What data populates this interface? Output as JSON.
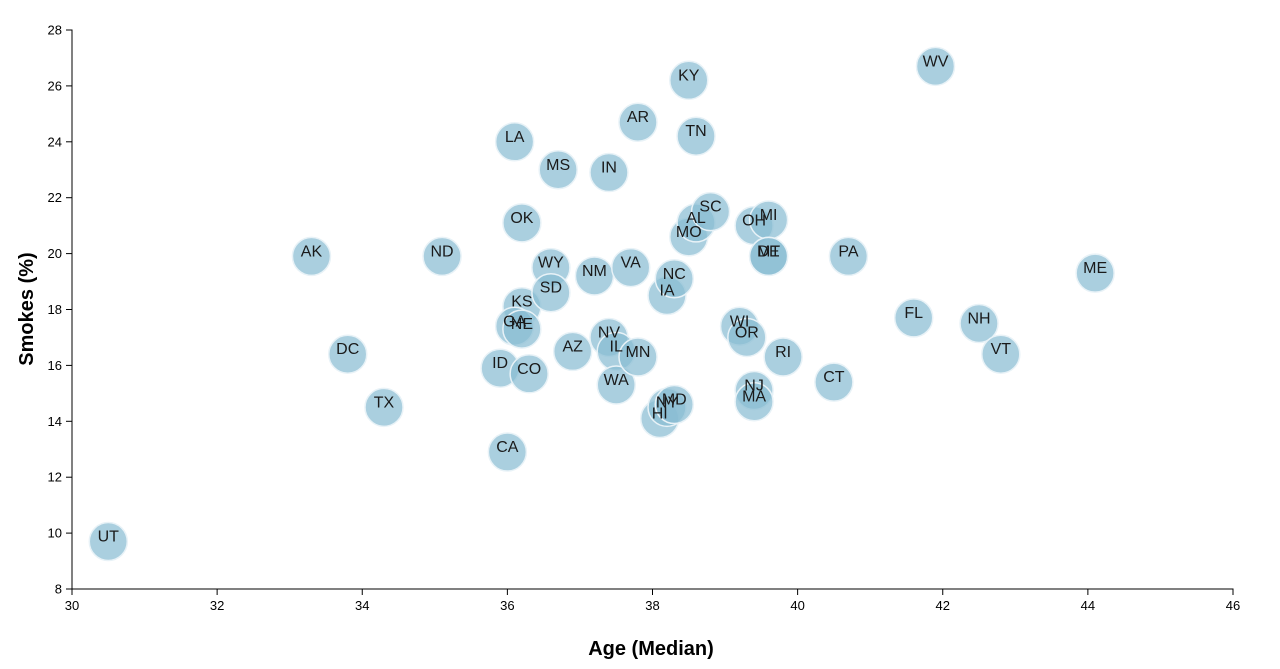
{
  "chart_data": {
    "type": "scatter",
    "title": "",
    "xlabel": "Age (Median)",
    "ylabel": "Smokes (%)",
    "xlim": [
      30,
      46
    ],
    "ylim": [
      8,
      28
    ],
    "xticks": [
      "30",
      "32",
      "34",
      "36",
      "38",
      "40",
      "42",
      "44",
      "46"
    ],
    "yticks": [
      "8",
      "10",
      "12",
      "14",
      "16",
      "18",
      "20",
      "22",
      "24",
      "26",
      "28"
    ],
    "grid": false,
    "marker_color": "#89bdd3",
    "points": [
      {
        "label": "UT",
        "x": 30.5,
        "y": 9.7
      },
      {
        "label": "AK",
        "x": 33.3,
        "y": 19.9
      },
      {
        "label": "DC",
        "x": 33.8,
        "y": 16.4
      },
      {
        "label": "TX",
        "x": 34.3,
        "y": 14.5
      },
      {
        "label": "ND",
        "x": 35.1,
        "y": 19.9
      },
      {
        "label": "ID",
        "x": 35.9,
        "y": 15.9
      },
      {
        "label": "CA",
        "x": 36.0,
        "y": 12.9
      },
      {
        "label": "LA",
        "x": 36.1,
        "y": 24.0
      },
      {
        "label": "OK",
        "x": 36.2,
        "y": 21.1
      },
      {
        "label": "KS",
        "x": 36.2,
        "y": 18.1
      },
      {
        "label": "GA",
        "x": 36.1,
        "y": 17.4
      },
      {
        "label": "NE",
        "x": 36.2,
        "y": 17.3
      },
      {
        "label": "CO",
        "x": 36.3,
        "y": 15.7
      },
      {
        "label": "MS",
        "x": 36.7,
        "y": 23.0
      },
      {
        "label": "WY",
        "x": 36.6,
        "y": 19.5
      },
      {
        "label": "SD",
        "x": 36.6,
        "y": 18.6
      },
      {
        "label": "AZ",
        "x": 36.9,
        "y": 16.5
      },
      {
        "label": "NM",
        "x": 37.2,
        "y": 19.2
      },
      {
        "label": "IN",
        "x": 37.4,
        "y": 22.9
      },
      {
        "label": "NV",
        "x": 37.4,
        "y": 17.0
      },
      {
        "label": "IL",
        "x": 37.5,
        "y": 16.5
      },
      {
        "label": "WA",
        "x": 37.5,
        "y": 15.3
      },
      {
        "label": "VA",
        "x": 37.7,
        "y": 19.5
      },
      {
        "label": "AR",
        "x": 37.8,
        "y": 24.7
      },
      {
        "label": "MN",
        "x": 37.8,
        "y": 16.3
      },
      {
        "label": "HI",
        "x": 38.1,
        "y": 14.1
      },
      {
        "label": "IA",
        "x": 38.2,
        "y": 18.5
      },
      {
        "label": "NC",
        "x": 38.3,
        "y": 19.1
      },
      {
        "label": "NY",
        "x": 38.2,
        "y": 14.5
      },
      {
        "label": "MD",
        "x": 38.3,
        "y": 14.6
      },
      {
        "label": "KY",
        "x": 38.5,
        "y": 26.2
      },
      {
        "label": "MO",
        "x": 38.5,
        "y": 20.6
      },
      {
        "label": "AL",
        "x": 38.6,
        "y": 21.1
      },
      {
        "label": "TN",
        "x": 38.6,
        "y": 24.2
      },
      {
        "label": "SC",
        "x": 38.8,
        "y": 21.5
      },
      {
        "label": "WI",
        "x": 39.2,
        "y": 17.4
      },
      {
        "label": "OR",
        "x": 39.3,
        "y": 17.0
      },
      {
        "label": "OH",
        "x": 39.4,
        "y": 21.0
      },
      {
        "label": "NJ",
        "x": 39.4,
        "y": 15.1
      },
      {
        "label": "MA",
        "x": 39.4,
        "y": 14.7
      },
      {
        "label": "MI",
        "x": 39.6,
        "y": 21.2
      },
      {
        "label": "DE",
        "x": 39.6,
        "y": 19.9
      },
      {
        "label": "MT",
        "x": 39.6,
        "y": 19.9
      },
      {
        "label": "RI",
        "x": 39.8,
        "y": 16.3
      },
      {
        "label": "CT",
        "x": 40.5,
        "y": 15.4
      },
      {
        "label": "PA",
        "x": 40.7,
        "y": 19.9
      },
      {
        "label": "FL",
        "x": 41.6,
        "y": 17.7
      },
      {
        "label": "WV",
        "x": 41.9,
        "y": 26.7
      },
      {
        "label": "NH",
        "x": 42.5,
        "y": 17.5
      },
      {
        "label": "VT",
        "x": 42.8,
        "y": 16.4
      },
      {
        "label": "ME",
        "x": 44.1,
        "y": 19.3
      }
    ]
  }
}
